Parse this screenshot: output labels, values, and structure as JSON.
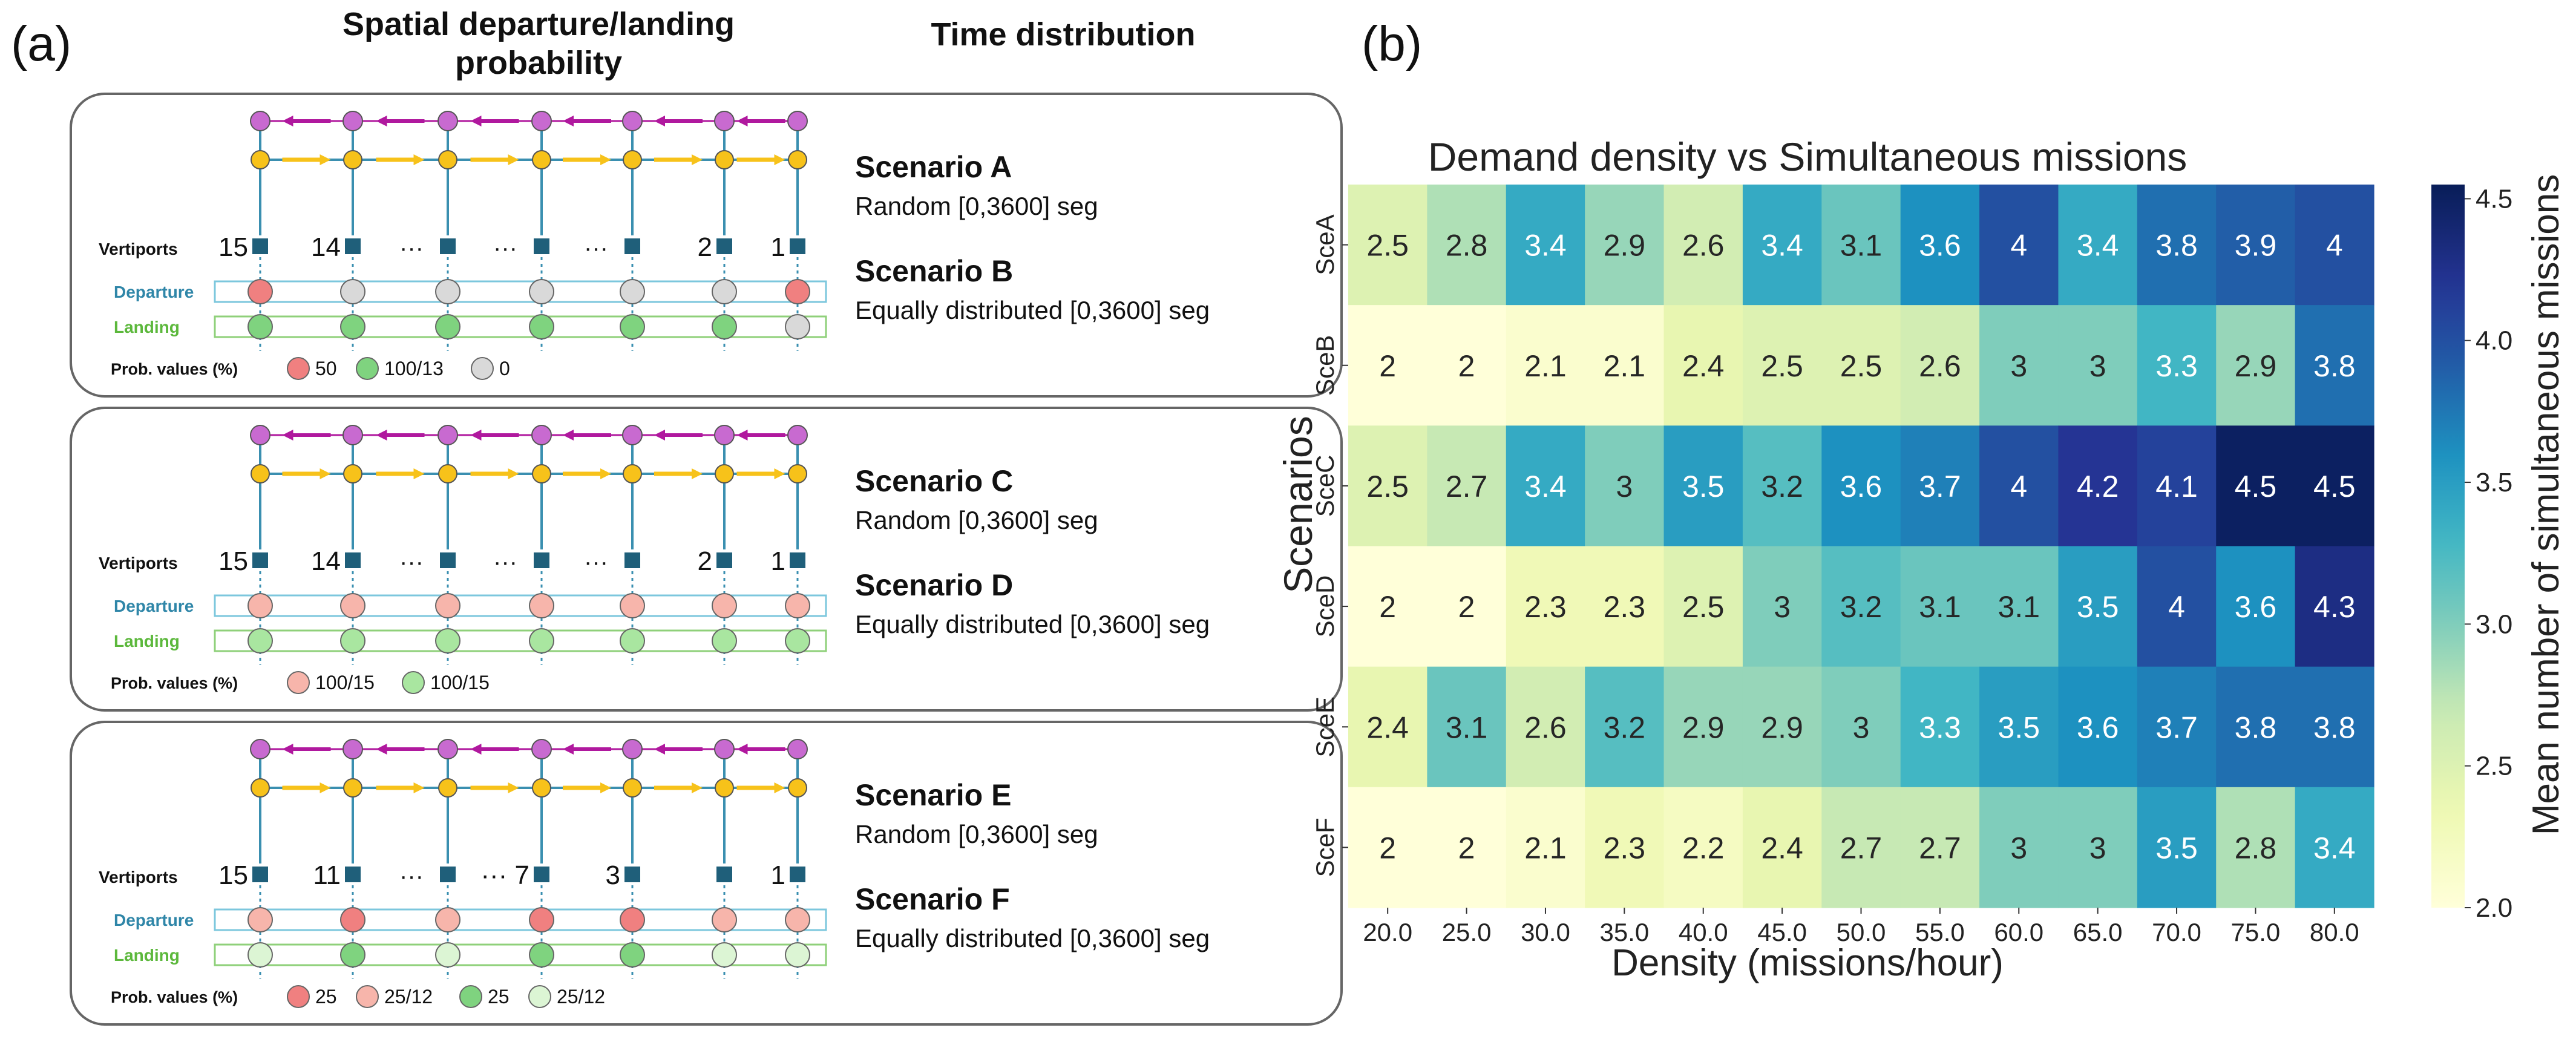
{
  "panel_a": {
    "label": "(a)",
    "header_spatial_line1": "Spatial departure/landing",
    "header_spatial_line2": "probability",
    "header_time": "Time distribution",
    "row_labels": {
      "vertiports": "Vertiports",
      "departure": "Departure",
      "landing": "Landing",
      "prob": "Prob. values (%)"
    },
    "boxes": [
      {
        "port_numbers": [
          "15",
          "14",
          "···",
          "···",
          "···",
          "2",
          "1"
        ],
        "departure": [
          "red",
          "grey",
          "grey",
          "grey",
          "grey",
          "grey",
          "red"
        ],
        "landing": [
          "green",
          "green",
          "green",
          "green",
          "green",
          "green",
          "grey"
        ],
        "legend": [
          {
            "color": "red",
            "label": "50"
          },
          {
            "color": "green",
            "label": "100/13"
          },
          {
            "color": "grey",
            "label": "0"
          }
        ],
        "scenario_1_title": "Scenario A",
        "scenario_1_desc": "Random [0,3600] seg",
        "scenario_2_title": "Scenario B",
        "scenario_2_desc": "Equally distributed [0,3600] seg"
      },
      {
        "port_numbers": [
          "15",
          "14",
          "···",
          "···",
          "···",
          "2",
          "1"
        ],
        "departure": [
          "pink",
          "pink",
          "pink",
          "pink",
          "pink",
          "pink",
          "pink"
        ],
        "landing": [
          "lgreen",
          "lgreen",
          "lgreen",
          "lgreen",
          "lgreen",
          "lgreen",
          "lgreen"
        ],
        "legend": [
          {
            "color": "pink",
            "label": "100/15"
          },
          {
            "color": "lgreen",
            "label": "100/15"
          }
        ],
        "scenario_1_title": "Scenario C",
        "scenario_1_desc": "Random [0,3600] seg",
        "scenario_2_title": "Scenario D",
        "scenario_2_desc": "Equally distributed [0,3600] seg"
      },
      {
        "port_numbers": [
          "15",
          "11",
          "···",
          "··· 7",
          "3",
          "",
          "1"
        ],
        "departure": [
          "pink",
          "red",
          "pink",
          "red",
          "red",
          "pink",
          "pink"
        ],
        "landing": [
          "pale",
          "green",
          "pale",
          "green",
          "green",
          "pale",
          "pale"
        ],
        "legend": [
          {
            "color": "red",
            "label": "25"
          },
          {
            "color": "pink",
            "label": "25/12"
          },
          {
            "color": "green",
            "label": "25"
          },
          {
            "color": "pale",
            "label": "25/12"
          }
        ],
        "scenario_1_title": "Scenario E",
        "scenario_1_desc": "Random [0,3600] seg",
        "scenario_2_title": "Scenario F",
        "scenario_2_desc": "Equally distributed [0,3600] seg"
      }
    ]
  },
  "panel_b": {
    "label": "(b)"
  },
  "colors": {
    "red": "#f08080",
    "grey": "#d9d9d9",
    "green": "#7fd37f",
    "pink": "#f7b5ab",
    "lgreen": "#a9e6a0",
    "pale": "#dcf5d4",
    "navy": "#1f5f7a",
    "purple": "#c86ad0",
    "purple_line": "#b0189e",
    "orange": "#f7c21a",
    "teal_line": "#3a8fb0",
    "dep_text": "#2f86a8",
    "land_text": "#5cb83c",
    "dep_box": "#7cc7dd",
    "land_box": "#8fd07a"
  },
  "chart_data": {
    "type": "heatmap",
    "title": "Demand density vs Simultaneous missions",
    "xlabel": "Density (missions/hour)",
    "ylabel": "Scenarios",
    "x": [
      "20.0",
      "25.0",
      "30.0",
      "35.0",
      "40.0",
      "45.0",
      "50.0",
      "55.0",
      "60.0",
      "65.0",
      "70.0",
      "75.0",
      "80.0"
    ],
    "y": [
      "SceA",
      "SceB",
      "SceC",
      "SceD",
      "SceE",
      "SceF"
    ],
    "values": [
      [
        2.5,
        2.8,
        3.4,
        2.9,
        2.6,
        3.4,
        3.1,
        3.6,
        4,
        3.4,
        3.8,
        3.9,
        4
      ],
      [
        2,
        2,
        2.1,
        2.1,
        2.4,
        2.5,
        2.5,
        2.6,
        3,
        3,
        3.3,
        2.9,
        3.8
      ],
      [
        2.5,
        2.7,
        3.4,
        3,
        3.5,
        3.2,
        3.6,
        3.7,
        4,
        4.2,
        4.1,
        4.5,
        4.5
      ],
      [
        2,
        2,
        2.3,
        2.3,
        2.5,
        3,
        3.2,
        3.1,
        3.1,
        3.5,
        4,
        3.6,
        4.3
      ],
      [
        2.4,
        3.1,
        2.6,
        3.2,
        2.9,
        2.9,
        3,
        3.3,
        3.5,
        3.6,
        3.7,
        3.8,
        3.8
      ],
      [
        2,
        2,
        2.1,
        2.3,
        2.2,
        2.4,
        2.7,
        2.7,
        3,
        3,
        3.5,
        2.8,
        3.4
      ]
    ],
    "labels": [
      [
        "2.5",
        "2.8",
        "3.4",
        "2.9",
        "2.6",
        "3.4",
        "3.1",
        "3.6",
        "4",
        "3.4",
        "3.8",
        "3.9",
        "4"
      ],
      [
        "2",
        "2",
        "2.1",
        "2.1",
        "2.4",
        "2.5",
        "2.5",
        "2.6",
        "3",
        "3",
        "3.3",
        "2.9",
        "3.8"
      ],
      [
        "2.5",
        "2.7",
        "3.4",
        "3",
        "3.5",
        "3.2",
        "3.6",
        "3.7",
        "4",
        "4.2",
        "4.1",
        "4.5",
        "4.5"
      ],
      [
        "2",
        "2",
        "2.3",
        "2.3",
        "2.5",
        "3",
        "3.2",
        "3.1",
        "3.1",
        "3.5",
        "4",
        "3.6",
        "4.3"
      ],
      [
        "2.4",
        "3.1",
        "2.6",
        "3.2",
        "2.9",
        "2.9",
        "3",
        "3.3",
        "3.5",
        "3.6",
        "3.7",
        "3.8",
        "3.8"
      ],
      [
        "2",
        "2",
        "2.1",
        "2.3",
        "2.2",
        "2.4",
        "2.7",
        "2.7",
        "3",
        "3",
        "3.5",
        "2.8",
        "3.4"
      ]
    ],
    "colorbar": {
      "label": "Mean number of simultaneous missions",
      "range": [
        2.0,
        4.55
      ],
      "ticks": [
        2.0,
        2.5,
        3.0,
        3.5,
        4.0,
        4.5
      ],
      "tick_labels": [
        "2.0",
        "2.5",
        "3.0",
        "3.5",
        "4.0",
        "4.5"
      ]
    },
    "colormap": "YlGnBu"
  }
}
